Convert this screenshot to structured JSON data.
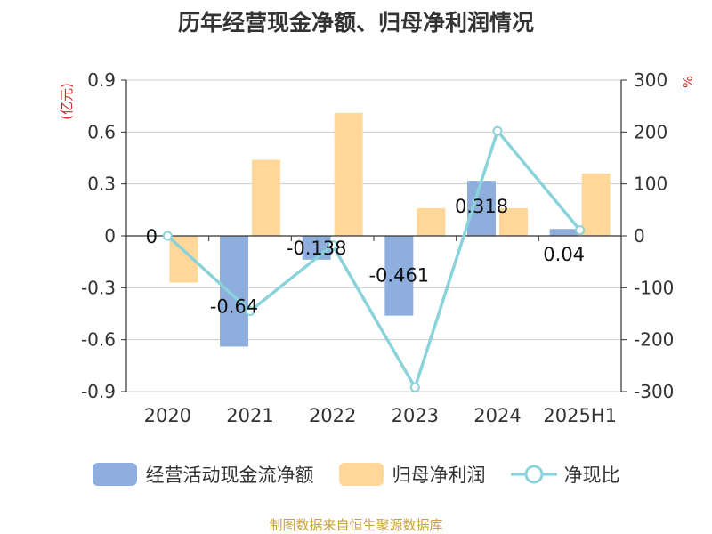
{
  "page": {
    "title": "历年经营现金净额、归母净利润情况",
    "source": "制图数据来自恒生聚源数据库"
  },
  "chart_data": {
    "type": "bar",
    "title": "历年经营现金净额、归母净利润情况",
    "categories": [
      "2020",
      "2021",
      "2022",
      "2023",
      "2024",
      "2025H1"
    ],
    "left_axis": {
      "unit_label": "(亿元)",
      "range": [
        -0.9,
        0.9
      ],
      "ticks": [
        0.9,
        0.6,
        0.3,
        0,
        -0.3,
        -0.6,
        -0.9
      ],
      "tick_labels": [
        "0.9",
        "0.6",
        "0.3",
        "0",
        "-0.3",
        "-0.6",
        "-0.9"
      ]
    },
    "right_axis": {
      "unit_label": "%",
      "range": [
        -300,
        300
      ],
      "ticks": [
        300,
        200,
        100,
        0,
        -100,
        -200,
        -300
      ],
      "tick_labels": [
        "300",
        "200",
        "100",
        "0",
        "-100",
        "-200",
        "-300"
      ]
    },
    "grid": true,
    "legend_position": "bottom",
    "series": [
      {
        "name": "经营活动现金流净额",
        "kind": "bar",
        "axis": "left",
        "color": "#8eaedd",
        "values": [
          0,
          -0.64,
          -0.138,
          -0.461,
          0.318,
          0.04
        ],
        "data_labels": [
          "0",
          "-0.64",
          "-0.138",
          "-0.461",
          "0.318",
          "0.04"
        ]
      },
      {
        "name": "归母净利润",
        "kind": "bar",
        "axis": "left",
        "color": "#ffd899",
        "values": [
          -0.27,
          0.44,
          0.71,
          0.16,
          0.16,
          0.36
        ]
      },
      {
        "name": "净现比",
        "kind": "line",
        "axis": "right",
        "color": "#8ad3da",
        "values": [
          0,
          -145,
          -18,
          -292,
          202,
          11
        ]
      }
    ]
  }
}
